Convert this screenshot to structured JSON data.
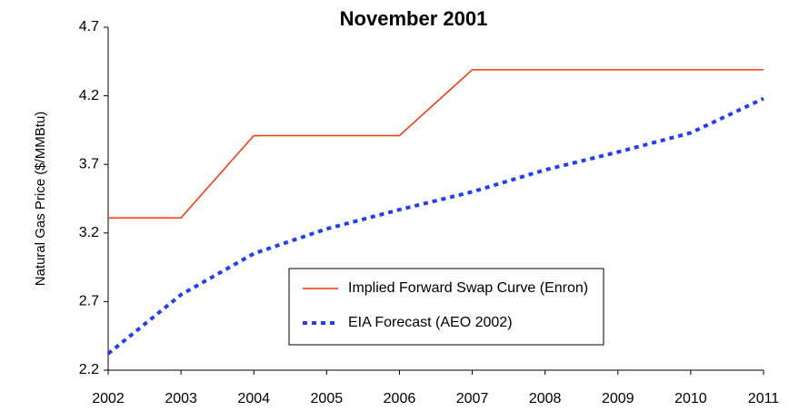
{
  "chart_data": {
    "type": "line",
    "title": "November 2001",
    "y_label": "Natural Gas Price ($/MMBtu)",
    "x": [
      2002,
      2003,
      2004,
      2005,
      2006,
      2007,
      2008,
      2009,
      2010,
      2011
    ],
    "xlim": [
      2002,
      2011
    ],
    "xticks": [
      2002,
      2003,
      2004,
      2005,
      2006,
      2007,
      2008,
      2009,
      2010,
      2011
    ],
    "ylim": [
      2.2,
      4.7
    ],
    "yticks": [
      2.2,
      2.7,
      3.2,
      3.7,
      4.2,
      4.7
    ],
    "series": [
      {
        "name": "Implied Forward Swap Curve (Enron)",
        "color": "#ff3300",
        "style": "solid",
        "values": [
          3.31,
          3.31,
          3.91,
          3.91,
          3.91,
          4.39,
          4.39,
          4.39,
          4.39,
          4.39
        ]
      },
      {
        "name": "EIA Forecast (AEO 2002)",
        "color": "#1f3cff",
        "style": "dashed",
        "values": [
          2.32,
          2.75,
          3.05,
          3.23,
          3.37,
          3.5,
          3.66,
          3.79,
          3.93,
          4.18
        ]
      }
    ]
  }
}
